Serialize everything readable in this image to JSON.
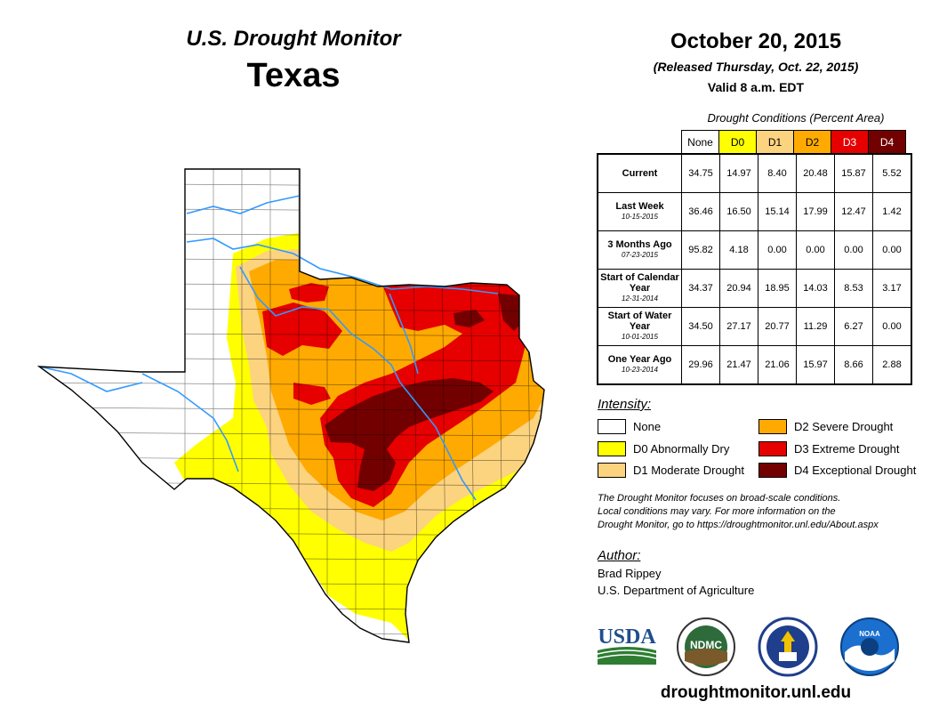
{
  "header": {
    "subtitle": "U.S. Drought Monitor",
    "state": "Texas",
    "date": "October 20, 2015",
    "released": "(Released Thursday, Oct. 22, 2015)",
    "valid": "Valid 8 a.m. EDT"
  },
  "conditions": {
    "caption": "Drought Conditions (Percent Area)",
    "columns": [
      {
        "label": "None",
        "color": "#ffffff",
        "text_color": "#000000"
      },
      {
        "label": "D0",
        "color": "#ffff00",
        "text_color": "#000000"
      },
      {
        "label": "D1",
        "color": "#fcd37f",
        "text_color": "#000000"
      },
      {
        "label": "D2",
        "color": "#ffaa00",
        "text_color": "#000000"
      },
      {
        "label": "D3",
        "color": "#e60000",
        "text_color": "#ffffff"
      },
      {
        "label": "D4",
        "color": "#730000",
        "text_color": "#ffffff"
      }
    ],
    "rows": [
      {
        "label": "Current",
        "sub": "",
        "values": [
          "34.75",
          "14.97",
          "8.40",
          "20.48",
          "15.87",
          "5.52"
        ]
      },
      {
        "label": "Last Week",
        "sub": "10-15-2015",
        "values": [
          "36.46",
          "16.50",
          "15.14",
          "17.99",
          "12.47",
          "1.42"
        ]
      },
      {
        "label": "3 Months Ago",
        "sub": "07-23-2015",
        "values": [
          "95.82",
          "4.18",
          "0.00",
          "0.00",
          "0.00",
          "0.00"
        ]
      },
      {
        "label": "Start of Calendar Year",
        "sub": "12-31-2014",
        "values": [
          "34.37",
          "20.94",
          "18.95",
          "14.03",
          "8.53",
          "3.17"
        ]
      },
      {
        "label": "Start of Water Year",
        "sub": "10-01-2015",
        "values": [
          "34.50",
          "27.17",
          "20.77",
          "11.29",
          "6.27",
          "0.00"
        ]
      },
      {
        "label": "One Year Ago",
        "sub": "10-23-2014",
        "values": [
          "29.96",
          "21.47",
          "21.06",
          "15.97",
          "8.66",
          "2.88"
        ]
      }
    ]
  },
  "legend": {
    "title": "Intensity:",
    "items": [
      {
        "label": "None",
        "color": "#ffffff"
      },
      {
        "label": "D0 Abnormally Dry",
        "color": "#ffff00"
      },
      {
        "label": "D1 Moderate Drought",
        "color": "#fcd37f"
      },
      {
        "label": "D2 Severe Drought",
        "color": "#ffaa00"
      },
      {
        "label": "D3 Extreme Drought",
        "color": "#e60000"
      },
      {
        "label": "D4 Exceptional Drought",
        "color": "#730000"
      }
    ]
  },
  "note": {
    "line1": "The Drought Monitor focuses on broad-scale conditions.",
    "line2": "Local conditions may vary. For more information on the",
    "line3": "Drought Monitor, go to https://droughtmonitor.unl.edu/About.aspx"
  },
  "author": {
    "title": "Author:",
    "name": "Brad Rippey",
    "org": "U.S. Department of Agriculture"
  },
  "logos": {
    "usda": "USDA",
    "ndmc": "NDMC",
    "noaa": "NOAA"
  },
  "url": "droughtmonitor.unl.edu"
}
